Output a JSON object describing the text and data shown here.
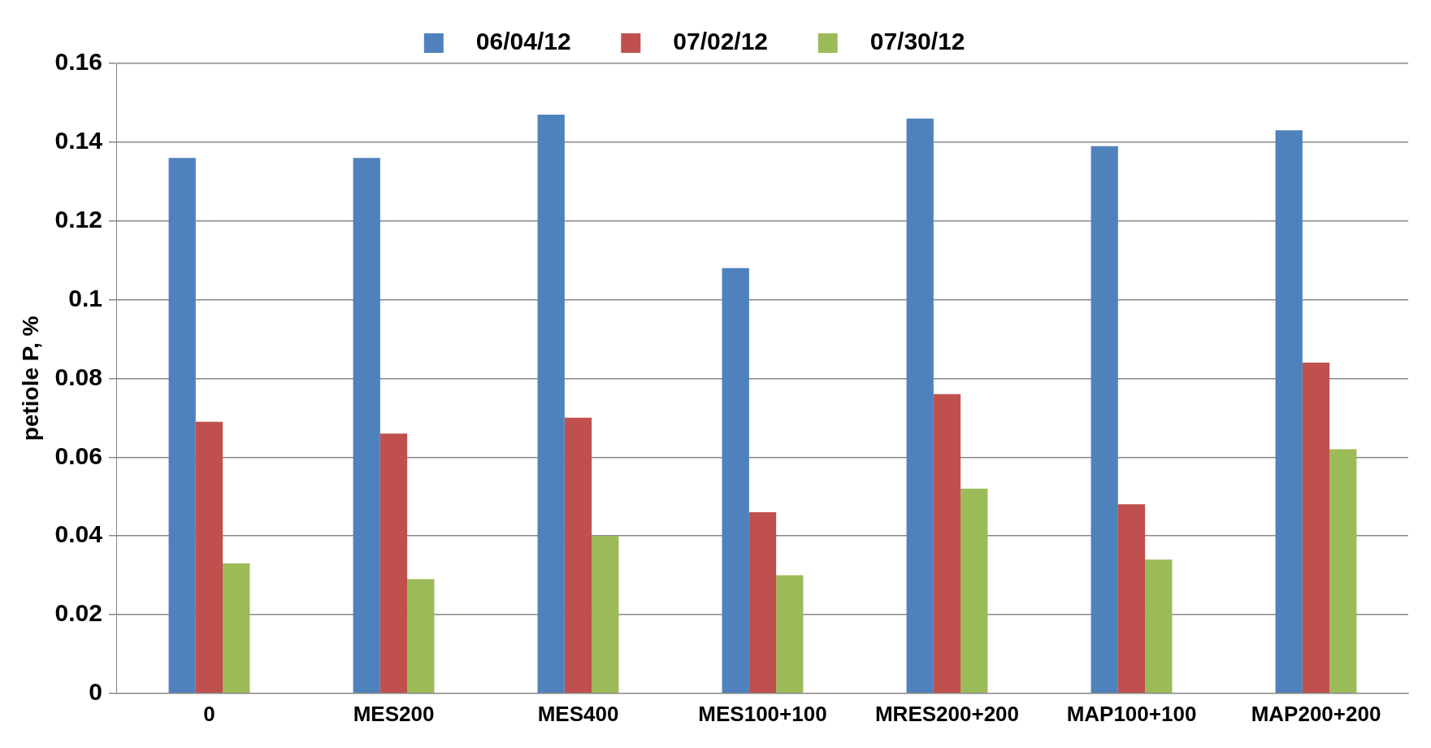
{
  "chart_data": {
    "type": "bar",
    "ylabel": "petiole P, %",
    "categories": [
      "0",
      "MES200",
      "MES400",
      "MES100+100",
      "MRES200+200",
      "MAP100+100",
      "MAP200+200"
    ],
    "series": [
      {
        "name": "06/04/12",
        "color": "#4f81bd",
        "values": [
          0.136,
          0.136,
          0.147,
          0.108,
          0.146,
          0.139,
          0.143
        ]
      },
      {
        "name": "07/02/12",
        "color": "#c0504d",
        "values": [
          0.069,
          0.066,
          0.07,
          0.046,
          0.076,
          0.048,
          0.084
        ]
      },
      {
        "name": "07/30/12",
        "color": "#9bbb59",
        "values": [
          0.033,
          0.029,
          0.04,
          0.03,
          0.052,
          0.034,
          0.062
        ]
      }
    ],
    "ylim": [
      0,
      0.16
    ],
    "yticks": [
      0,
      0.02,
      0.04,
      0.06,
      0.08,
      0.1,
      0.12,
      0.14,
      0.16
    ],
    "grid": "y",
    "legend": "top"
  }
}
